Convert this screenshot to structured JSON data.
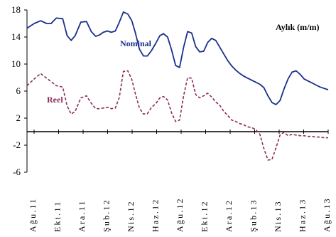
{
  "chart_data": {
    "type": "line",
    "title": "Aylık (m/m)",
    "ylim": [
      -6,
      18
    ],
    "yticks": [
      -6,
      -2,
      2,
      6,
      10,
      14,
      18
    ],
    "baseline": 0,
    "grid": false,
    "categories": [
      "Ağu.11",
      "Eki.11",
      "Ara.11",
      "Şub.12",
      "Nis.12",
      "Haz.12",
      "Ağu.12",
      "Eki.12",
      "Ara.12",
      "Şub.13",
      "Nis.13",
      "Haz.13",
      "Ağu.13"
    ],
    "x": [
      0,
      1.8,
      3.4,
      4.9,
      6.0,
      7.3,
      8.9,
      10.0,
      11.0,
      12.0,
      13.4,
      14.8,
      16.0,
      17.1,
      18.0,
      19.0,
      20.0,
      21.0,
      22.0,
      23.0,
      24.0,
      25.1,
      26.1,
      27.0,
      28.0,
      29.0,
      30.0,
      31.0,
      32.0,
      33.1,
      34.0,
      35.0,
      36.0,
      37.0,
      38.0,
      39.0,
      40.0,
      41.0,
      42.0,
      43.0,
      44.0,
      45.0,
      46.0,
      47.0,
      48.0,
      49.0,
      50.0,
      51.0,
      52.0,
      53.0,
      54.0,
      55.0,
      56.0,
      57.0,
      58.0,
      59.0,
      60.0,
      61.0,
      62.0,
      63.0,
      64.0,
      65.0,
      66.0,
      67.0,
      68.0,
      69.0,
      70.0,
      71.0,
      72.0,
      73.0,
      74.0,
      75.0
    ],
    "series": [
      {
        "name": "Nominal",
        "color": "#1a2f8c",
        "dash": "solid",
        "values": [
          15.3,
          16.0,
          16.4,
          16.0,
          16.0,
          16.8,
          16.7,
          14.2,
          13.5,
          14.2,
          16.2,
          16.3,
          14.8,
          14.1,
          14.3,
          14.7,
          14.9,
          14.7,
          14.9,
          16.2,
          17.7,
          17.4,
          16.4,
          14.6,
          12.2,
          11.2,
          11.2,
          12.0,
          13.0,
          14.2,
          14.5,
          14.0,
          12.1,
          9.8,
          9.5,
          12.5,
          14.8,
          14.6,
          12.6,
          11.8,
          11.9,
          13.2,
          13.8,
          13.5,
          12.5,
          11.5,
          10.5,
          9.7,
          9.1,
          8.6,
          8.2,
          7.9,
          7.6,
          7.3,
          7.0,
          6.5,
          5.3,
          4.3,
          4.0,
          4.6,
          6.3,
          7.8,
          8.8,
          9.0,
          8.5,
          7.8,
          7.5,
          7.2,
          6.9,
          6.6,
          6.4,
          6.2
        ]
      },
      {
        "name": "Reel",
        "color": "#8b2c5c",
        "dash": "dashed",
        "values": [
          6.8,
          7.8,
          8.6,
          7.9,
          7.4,
          6.8,
          6.6,
          3.8,
          2.6,
          3.0,
          5.0,
          5.3,
          4.2,
          3.4,
          3.4,
          3.5,
          3.6,
          3.4,
          3.5,
          5.1,
          8.9,
          9.0,
          7.7,
          5.6,
          3.5,
          2.6,
          2.7,
          3.6,
          4.1,
          5.0,
          5.2,
          4.7,
          2.8,
          1.5,
          1.7,
          5.3,
          8.0,
          7.9,
          5.5,
          5.0,
          5.3,
          5.7,
          5.1,
          4.4,
          3.9,
          3.0,
          2.4,
          1.7,
          1.5,
          1.2,
          1.0,
          0.7,
          0.6,
          0.3,
          -0.4,
          -2.5,
          -4.2,
          -4.1,
          -2.4,
          -0.5,
          -0.1,
          -0.6,
          -0.4,
          -0.5,
          -0.6,
          -0.6,
          -0.7,
          -0.7,
          -0.8,
          -0.8,
          -0.9,
          -0.9
        ]
      }
    ]
  }
}
